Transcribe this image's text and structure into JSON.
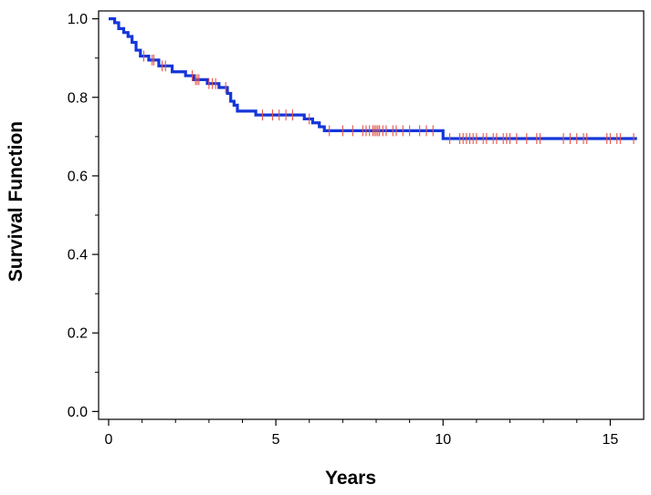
{
  "chart_data": {
    "type": "line",
    "subtype": "kaplan-meier-step",
    "xlabel": "Years",
    "ylabel": "Survival Function",
    "xlim": [
      -0.3,
      16.0
    ],
    "ylim": [
      -0.02,
      1.02
    ],
    "x_ticks": [
      0,
      5,
      10,
      15
    ],
    "x_minor_ticks": [
      1,
      2,
      3,
      4,
      6,
      7,
      8,
      9,
      11,
      12,
      13,
      14
    ],
    "y_ticks": [
      0.0,
      0.2,
      0.4,
      0.6,
      0.8,
      1.0
    ],
    "y_tick_labels": [
      "0.0",
      "0.2",
      "0.4",
      "0.6",
      "0.8",
      "1.0"
    ],
    "y_minor_ticks": [
      0.1,
      0.3,
      0.5,
      0.7,
      0.9
    ],
    "grid": false,
    "legend": "none",
    "colors": {
      "curve": "#1436d9",
      "censor": "#e8554a",
      "axis": "#000000"
    },
    "series": [
      {
        "name": "",
        "step_points": [
          [
            0,
            1.0
          ],
          [
            0.18,
            0.99
          ],
          [
            0.3,
            0.975
          ],
          [
            0.45,
            0.965
          ],
          [
            0.58,
            0.955
          ],
          [
            0.7,
            0.94
          ],
          [
            0.82,
            0.92
          ],
          [
            0.95,
            0.905
          ],
          [
            1.2,
            0.895
          ],
          [
            1.5,
            0.88
          ],
          [
            1.9,
            0.865
          ],
          [
            2.3,
            0.855
          ],
          [
            2.55,
            0.845
          ],
          [
            2.95,
            0.835
          ],
          [
            3.3,
            0.825
          ],
          [
            3.55,
            0.81
          ],
          [
            3.65,
            0.79
          ],
          [
            3.75,
            0.78
          ],
          [
            3.85,
            0.765
          ],
          [
            4.4,
            0.755
          ],
          [
            5.85,
            0.745
          ],
          [
            6.1,
            0.735
          ],
          [
            6.3,
            0.725
          ],
          [
            6.45,
            0.715
          ],
          [
            10.0,
            0.695
          ],
          [
            15.8,
            0.695
          ]
        ],
        "censored_x": [
          1.05,
          1.3,
          1.35,
          1.6,
          1.7,
          2.5,
          2.6,
          2.65,
          2.7,
          3.0,
          3.1,
          3.2,
          3.5,
          4.6,
          4.9,
          5.1,
          5.3,
          5.5,
          6.0,
          6.6,
          7.0,
          7.3,
          7.6,
          7.7,
          7.8,
          7.9,
          7.95,
          8.0,
          8.05,
          8.1,
          8.2,
          8.3,
          8.5,
          8.6,
          8.8,
          9.0,
          9.3,
          9.5,
          9.7,
          10.2,
          10.5,
          10.6,
          10.7,
          10.8,
          10.9,
          11.0,
          11.2,
          11.3,
          11.5,
          11.6,
          11.8,
          11.9,
          12.0,
          12.2,
          12.5,
          12.8,
          12.9,
          13.6,
          13.8,
          14.0,
          14.2,
          14.3,
          14.9,
          15.0,
          15.2,
          15.3,
          15.7
        ]
      }
    ]
  }
}
